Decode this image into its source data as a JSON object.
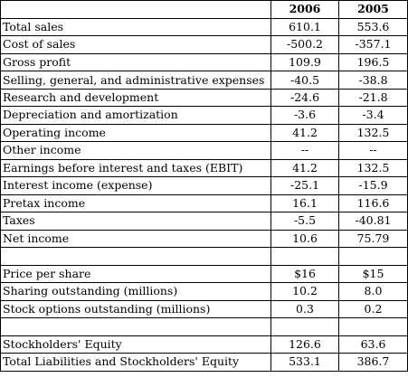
{
  "table": {
    "headers": [
      "",
      "2006",
      "2005"
    ],
    "rows": [
      {
        "label": "Total sales",
        "v2006": "610.1",
        "v2005": "553.6"
      },
      {
        "label": "Cost of sales",
        "v2006": "-500.2",
        "v2005": "-357.1"
      },
      {
        "label": "Gross profit",
        "v2006": "109.9",
        "v2005": "196.5"
      },
      {
        "label": "Selling, general, and administrative expenses",
        "v2006": "-40.5",
        "v2005": "-38.8",
        "tall": true
      },
      {
        "label": "Research and development",
        "v2006": "-24.6",
        "v2005": "-21.8"
      },
      {
        "label": "Depreciation and amortization",
        "v2006": "-3.6",
        "v2005": "-3.4"
      },
      {
        "label": "Operating income",
        "v2006": "41.2",
        "v2005": "132.5"
      },
      {
        "label": "Other income",
        "v2006": "--",
        "v2005": "--"
      },
      {
        "label": "Earnings before interest and taxes (EBIT)",
        "v2006": "41.2",
        "v2005": "132.5"
      },
      {
        "label": "Interest income (expense)",
        "v2006": "-25.1",
        "v2005": "-15.9"
      },
      {
        "label": "Pretax income",
        "v2006": "16.1",
        "v2005": "116.6"
      },
      {
        "label": "Taxes",
        "v2006": "-5.5",
        "v2005": "-40.81"
      },
      {
        "label": "Net income",
        "v2006": "10.6",
        "v2005": "75.79"
      },
      {
        "label": "",
        "v2006": "",
        "v2005": ""
      },
      {
        "label": "Price per share",
        "v2006": "$16",
        "v2005": "$15"
      },
      {
        "label": "Sharing outstanding (millions)",
        "v2006": "10.2",
        "v2005": "8.0"
      },
      {
        "label": "Stock options outstanding (millions)",
        "v2006": "0.3",
        "v2005": "0.2"
      },
      {
        "label": "",
        "v2006": "",
        "v2005": ""
      },
      {
        "label": "Stockholders' Equity",
        "v2006": "126.6",
        "v2005": "63.6"
      },
      {
        "label": "Total Liabilities and Stockholders' Equity",
        "v2006": "533.1",
        "v2005": "386.7"
      }
    ]
  }
}
